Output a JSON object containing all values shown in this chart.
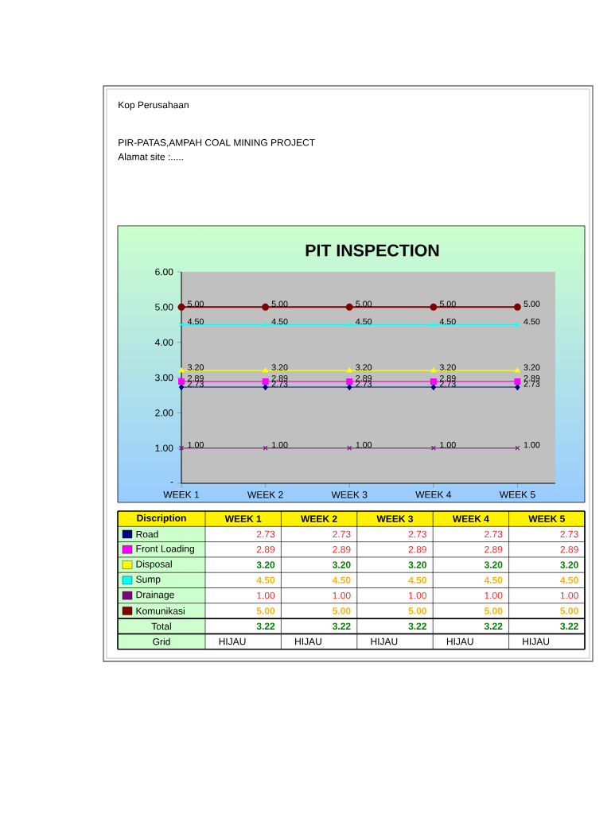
{
  "chart_data": {
    "type": "line",
    "title": "PIT INSPECTION",
    "legend_title": "Discription",
    "legend": "bottom",
    "categories": [
      "WEEK 1",
      "WEEK 2",
      "WEEK 3",
      "WEEK 4",
      "WEEK 5"
    ],
    "ylim": [
      0,
      6
    ],
    "yticks": [
      {
        "value": 0,
        "label": "-"
      },
      {
        "value": 1,
        "label": "1.00"
      },
      {
        "value": 2,
        "label": "2.00"
      },
      {
        "value": 3,
        "label": "3.00"
      },
      {
        "value": 4,
        "label": "4.00"
      },
      {
        "value": 5,
        "label": "5.00"
      },
      {
        "value": 6,
        "label": "6.00"
      }
    ],
    "series": [
      {
        "name": "Road",
        "color": "#000080",
        "marker": "diamond",
        "values": [
          2.73,
          2.73,
          2.73,
          2.73,
          2.73
        ],
        "value_labels": [
          "2.73",
          "2.73",
          "2.73",
          "2.73",
          "2.73"
        ]
      },
      {
        "name": "Front Loading",
        "color": "#ff00ff",
        "marker": "square",
        "values": [
          2.89,
          2.89,
          2.89,
          2.89,
          2.89
        ],
        "value_labels": [
          "2.89",
          "2.89",
          "2.89",
          "2.89",
          "2.89"
        ]
      },
      {
        "name": "Disposal",
        "color": "#ffff00",
        "marker": "triangle",
        "values": [
          3.2,
          3.2,
          3.2,
          3.2,
          3.2
        ],
        "value_labels": [
          "3.20",
          "3.20",
          "3.20",
          "3.20",
          "3.20"
        ]
      },
      {
        "name": "Sump",
        "color": "#00ffff",
        "marker": "cross",
        "values": [
          4.5,
          4.5,
          4.5,
          4.5,
          4.5
        ],
        "value_labels": [
          "4.50",
          "4.50",
          "4.50",
          "4.50",
          "4.50"
        ]
      },
      {
        "name": "Drainage",
        "color": "#800080",
        "marker": "cross",
        "values": [
          1,
          1,
          1,
          1,
          1
        ],
        "value_labels": [
          "1.00",
          "1.00",
          "1.00",
          "1.00",
          "1.00"
        ]
      },
      {
        "name": "Komunikasi",
        "color": "#800000",
        "marker": "circle",
        "values": [
          5,
          5,
          5,
          5,
          5
        ],
        "value_labels": [
          "5.00",
          "5.00",
          "5.00",
          "5.00",
          "5.00"
        ]
      }
    ],
    "annotations": [
      "Kop Perusahaan",
      "PIR-PATAS,AMPAH COAL MINING PROJECT",
      "Alamat site :.....",
      "Total",
      "3.22",
      "3.22",
      "3.22",
      "3.22",
      "3.22",
      "Grid",
      "HIJAU",
      "HIJAU",
      "HIJAU",
      "HIJAU",
      "HIJAU"
    ]
  }
}
